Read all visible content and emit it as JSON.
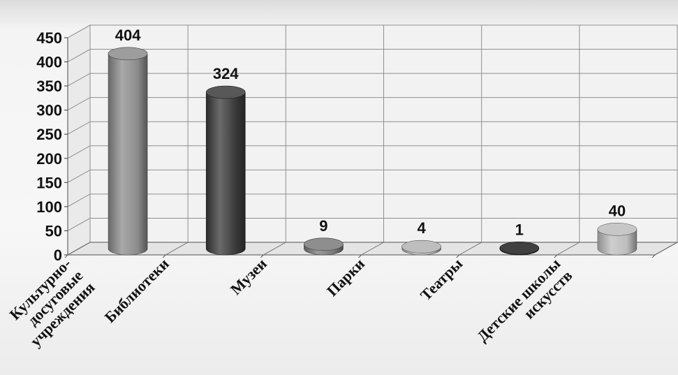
{
  "chart_data": {
    "type": "bar",
    "bar_style": "3d-cylinder",
    "categories": [
      [
        "Культурно-",
        "досуговые",
        "учреждения"
      ],
      [
        "Библиотеки"
      ],
      [
        "Музеи"
      ],
      [
        "Парки"
      ],
      [
        "Театры"
      ],
      [
        "Детские школы",
        "искусств"
      ]
    ],
    "values": [
      404,
      324,
      9,
      4,
      1,
      40
    ],
    "value_labels": [
      "404",
      "324",
      "9",
      "4",
      "1",
      "40"
    ],
    "bar_colors": [
      "#8c8c8c",
      "#3a3a3a",
      "#7a7a7a",
      "#b3b3b3",
      "#1e1e1e",
      "#bdbdbd"
    ],
    "ylim": [
      0,
      450
    ],
    "yticks": [
      "0",
      "50",
      "100",
      "150",
      "200",
      "250",
      "300",
      "350",
      "400",
      "450"
    ],
    "grid": true,
    "title": "",
    "xlabel": "",
    "ylabel": ""
  }
}
